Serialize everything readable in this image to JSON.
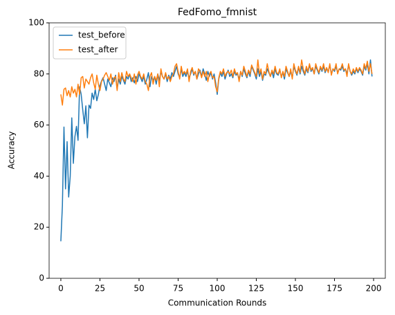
{
  "chart_data": {
    "type": "line",
    "title": "FedFomo_fmnist",
    "xlabel": "Communication Rounds",
    "ylabel": "Accuracy",
    "x": [
      0,
      1,
      2,
      3,
      4,
      5,
      6,
      7,
      8,
      9,
      10,
      11,
      12,
      13,
      14,
      15,
      16,
      17,
      18,
      19,
      20,
      21,
      22,
      23,
      24,
      25,
      26,
      27,
      28,
      29,
      30,
      31,
      32,
      33,
      34,
      35,
      36,
      37,
      38,
      39,
      40,
      41,
      42,
      43,
      44,
      45,
      46,
      47,
      48,
      49,
      50,
      51,
      52,
      53,
      54,
      55,
      56,
      57,
      58,
      59,
      60,
      61,
      62,
      63,
      64,
      65,
      66,
      67,
      68,
      69,
      70,
      71,
      72,
      73,
      74,
      75,
      76,
      77,
      78,
      79,
      80,
      81,
      82,
      83,
      84,
      85,
      86,
      87,
      88,
      89,
      90,
      91,
      92,
      93,
      94,
      95,
      96,
      97,
      98,
      99,
      100,
      101,
      102,
      103,
      104,
      105,
      106,
      107,
      108,
      109,
      110,
      111,
      112,
      113,
      114,
      115,
      116,
      117,
      118,
      119,
      120,
      121,
      122,
      123,
      124,
      125,
      126,
      127,
      128,
      129,
      130,
      131,
      132,
      133,
      134,
      135,
      136,
      137,
      138,
      139,
      140,
      141,
      142,
      143,
      144,
      145,
      146,
      147,
      148,
      149,
      150,
      151,
      152,
      153,
      154,
      155,
      156,
      157,
      158,
      159,
      160,
      161,
      162,
      163,
      164,
      165,
      166,
      167,
      168,
      169,
      170,
      171,
      172,
      173,
      174,
      175,
      176,
      177,
      178,
      179,
      180,
      181,
      182,
      183,
      184,
      185,
      186,
      187,
      188,
      189,
      190,
      191,
      192,
      193,
      194,
      195,
      196,
      197,
      198,
      199
    ],
    "series": [
      {
        "name": "test_before",
        "color": "#1f77b4",
        "values": [
          14.5,
          28.5,
          59.2,
          35,
          53.5,
          31.8,
          40,
          62.8,
          45,
          55.5,
          59.5,
          54,
          75,
          72,
          66,
          60.5,
          67.5,
          55,
          67.8,
          66.5,
          72.5,
          70,
          74,
          69.5,
          72,
          75.5,
          77.2,
          78.5,
          76,
          73.5,
          78,
          76.5,
          75,
          78.5,
          77,
          79.5,
          74,
          78,
          76,
          79,
          77.5,
          76,
          79,
          78,
          80,
          77,
          78.5,
          76.5,
          79,
          77,
          80,
          78.5,
          77,
          79,
          76,
          78,
          80.5,
          75,
          79,
          77.5,
          79,
          76,
          80,
          77.5,
          81,
          79,
          78,
          80,
          77,
          79.5,
          78,
          80.5,
          79,
          81,
          83,
          80,
          78.5,
          82,
          79,
          80.5,
          79,
          81,
          78.5,
          80,
          82,
          79.5,
          81,
          78,
          80,
          81.5,
          79,
          82,
          80,
          77.5,
          81,
          79,
          80.5,
          78,
          80,
          76.5,
          72,
          78,
          80.5,
          79,
          81,
          78,
          80,
          81.5,
          79,
          80,
          78.5,
          81,
          79.5,
          80,
          78,
          81,
          79,
          82,
          80,
          78.5,
          81,
          79,
          83,
          81.5,
          80,
          78,
          82,
          79,
          81,
          77.5,
          80,
          79.5,
          82,
          80.5,
          79,
          81,
          78.5,
          82,
          80,
          79.5,
          81.5,
          79,
          80.5,
          78,
          82,
          80.5,
          79,
          81,
          78.5,
          83,
          81,
          79.5,
          82.5,
          80,
          83,
          81,
          79.5,
          82,
          80.5,
          83.5,
          81,
          82,
          80,
          83,
          81.5,
          80,
          82.5,
          81,
          83,
          80.5,
          82,
          81,
          83.5,
          80,
          82,
          81,
          83,
          80.5,
          82,
          81.5,
          83,
          81,
          82,
          80,
          83.5,
          81,
          79.5,
          81,
          80,
          82,
          80.5,
          82,
          81,
          79.5,
          83,
          81.5,
          84,
          80,
          85.5,
          79
        ]
      },
      {
        "name": "test_after",
        "color": "#ff7f0e",
        "values": [
          72,
          67.8,
          74,
          74.5,
          71.5,
          73.5,
          71,
          75,
          72.5,
          74,
          71,
          76,
          72,
          78.5,
          79,
          74.5,
          78,
          77,
          76,
          78.5,
          80,
          76.5,
          74,
          79.5,
          76,
          73.5,
          77,
          78,
          79.5,
          80.5,
          79,
          77.5,
          80,
          76,
          78.5,
          79,
          73.5,
          80.5,
          77,
          80.5,
          78,
          77,
          81,
          79,
          80,
          78.5,
          77,
          80,
          76,
          79.5,
          81,
          79,
          78,
          80,
          77,
          76,
          73.5,
          79,
          80.5,
          76,
          79,
          77.5,
          80,
          75,
          82,
          79,
          78,
          80.5,
          78,
          79,
          77,
          79,
          80,
          83,
          84,
          81,
          78,
          83,
          80,
          81,
          80,
          82,
          77,
          81,
          82.5,
          80,
          81,
          78,
          82,
          81,
          78.5,
          81,
          79,
          81,
          77,
          80,
          81,
          78.5,
          79,
          75,
          73,
          78.5,
          81,
          80,
          82,
          79,
          80.5,
          81,
          80,
          81.5,
          79,
          82,
          80,
          80.5,
          77,
          81,
          79.5,
          83,
          81,
          79,
          81.5,
          80,
          83.5,
          82,
          80.5,
          79,
          85.5,
          80,
          82,
          78,
          81,
          80,
          84,
          81,
          79,
          81.5,
          80,
          83,
          80.5,
          80,
          82,
          78.5,
          81,
          79,
          83,
          81,
          79,
          82,
          78,
          84,
          81.5,
          80,
          83,
          80.5,
          85.5,
          82,
          80,
          83,
          81,
          84,
          81.5,
          82.5,
          80,
          84,
          82,
          80.5,
          83,
          81.5,
          84,
          81,
          82.5,
          80.5,
          84,
          79.5,
          82,
          81.5,
          84,
          80,
          82,
          82,
          84,
          81.5,
          82,
          79,
          84,
          81,
          80,
          82,
          80.5,
          82.5,
          81,
          82.5,
          81.5,
          80,
          84,
          82,
          85,
          81,
          84,
          80
        ]
      }
    ],
    "xlim": [
      -7.5,
      207.5
    ],
    "xticks": [
      0,
      25,
      50,
      75,
      100,
      125,
      150,
      175,
      200
    ],
    "ylim": [
      0,
      100
    ],
    "yticks": [
      0,
      20,
      40,
      60,
      80,
      100
    ],
    "grid": false,
    "legend": "upper left"
  }
}
